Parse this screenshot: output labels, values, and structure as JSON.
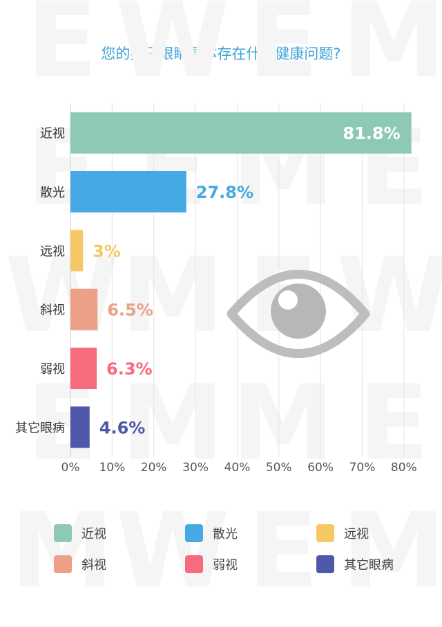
{
  "chart_data": {
    "type": "bar",
    "orientation": "horizontal",
    "title": "您的孩子眼睛具体存在什么健康问题?",
    "categories": [
      "近视",
      "散光",
      "远视",
      "斜视",
      "弱视",
      "其它眼病"
    ],
    "values": [
      81.8,
      27.8,
      3,
      6.5,
      6.3,
      4.6
    ],
    "value_labels": [
      "81.8%",
      "27.8%",
      "3%",
      "6.5%",
      "6.3%",
      "4.6%"
    ],
    "colors": [
      "#8ec9b4",
      "#45a9e3",
      "#f6c865",
      "#eda088",
      "#f76b7f",
      "#4e58a8"
    ],
    "xticks": [
      "0%",
      "10%",
      "20%",
      "30%",
      "40%",
      "50%",
      "60%",
      "70%",
      "80%"
    ],
    "xlim": [
      0,
      85
    ],
    "grid": true,
    "legend": {
      "position": "bottom",
      "entries": [
        "近视",
        "散光",
        "远视",
        "斜视",
        "弱视",
        "其它眼病"
      ]
    },
    "decoration": "eye-icon"
  }
}
